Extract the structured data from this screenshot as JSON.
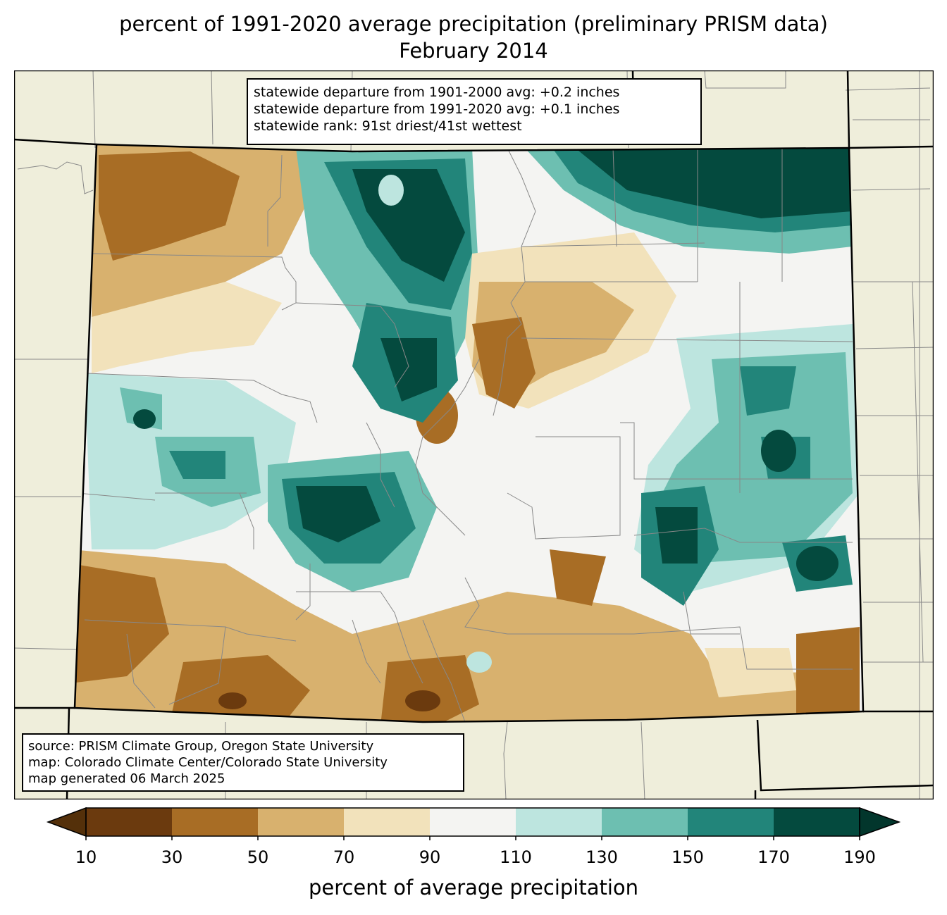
{
  "title": {
    "line1": "percent of 1991-2020 average precipitation (preliminary PRISM data)",
    "line2": "February 2014"
  },
  "stats": {
    "line1": "statewide departure from 1901-2000 avg: +0.2 inches",
    "line2": "statewide departure from 1991-2020 avg: +0.1 inches",
    "line3": "statewide rank: 91st driest/41st wettest"
  },
  "source": {
    "line1": "source: PRISM Climate Group, Oregon State University",
    "line2": "map: Colorado Climate Center/Colorado State University",
    "line3": "map generated 06 March 2025"
  },
  "colorbar": {
    "label": "percent of average precipitation",
    "ticks": [
      "10",
      "30",
      "50",
      "70",
      "90",
      "110",
      "130",
      "150",
      "170",
      "190"
    ],
    "bins": [
      {
        "min": 10,
        "max": 30,
        "color": "#6b3a0e"
      },
      {
        "min": 30,
        "max": 50,
        "color": "#a86d25"
      },
      {
        "min": 50,
        "max": 70,
        "color": "#d8b16e"
      },
      {
        "min": 70,
        "max": 90,
        "color": "#f2e2bb"
      },
      {
        "min": 90,
        "max": 110,
        "color": "#f4f4f2"
      },
      {
        "min": 110,
        "max": 130,
        "color": "#bde5df"
      },
      {
        "min": 130,
        "max": 150,
        "color": "#6dbfb1"
      },
      {
        "min": 150,
        "max": 170,
        "color": "#22857a"
      },
      {
        "min": 170,
        "max": 190,
        "color": "#044a3e"
      }
    ],
    "under_color": "#54300a",
    "over_color": "#02362c"
  },
  "colors": {
    "land": "#efeedb",
    "county_lines": "#888888",
    "state_lines": "#000000"
  }
}
